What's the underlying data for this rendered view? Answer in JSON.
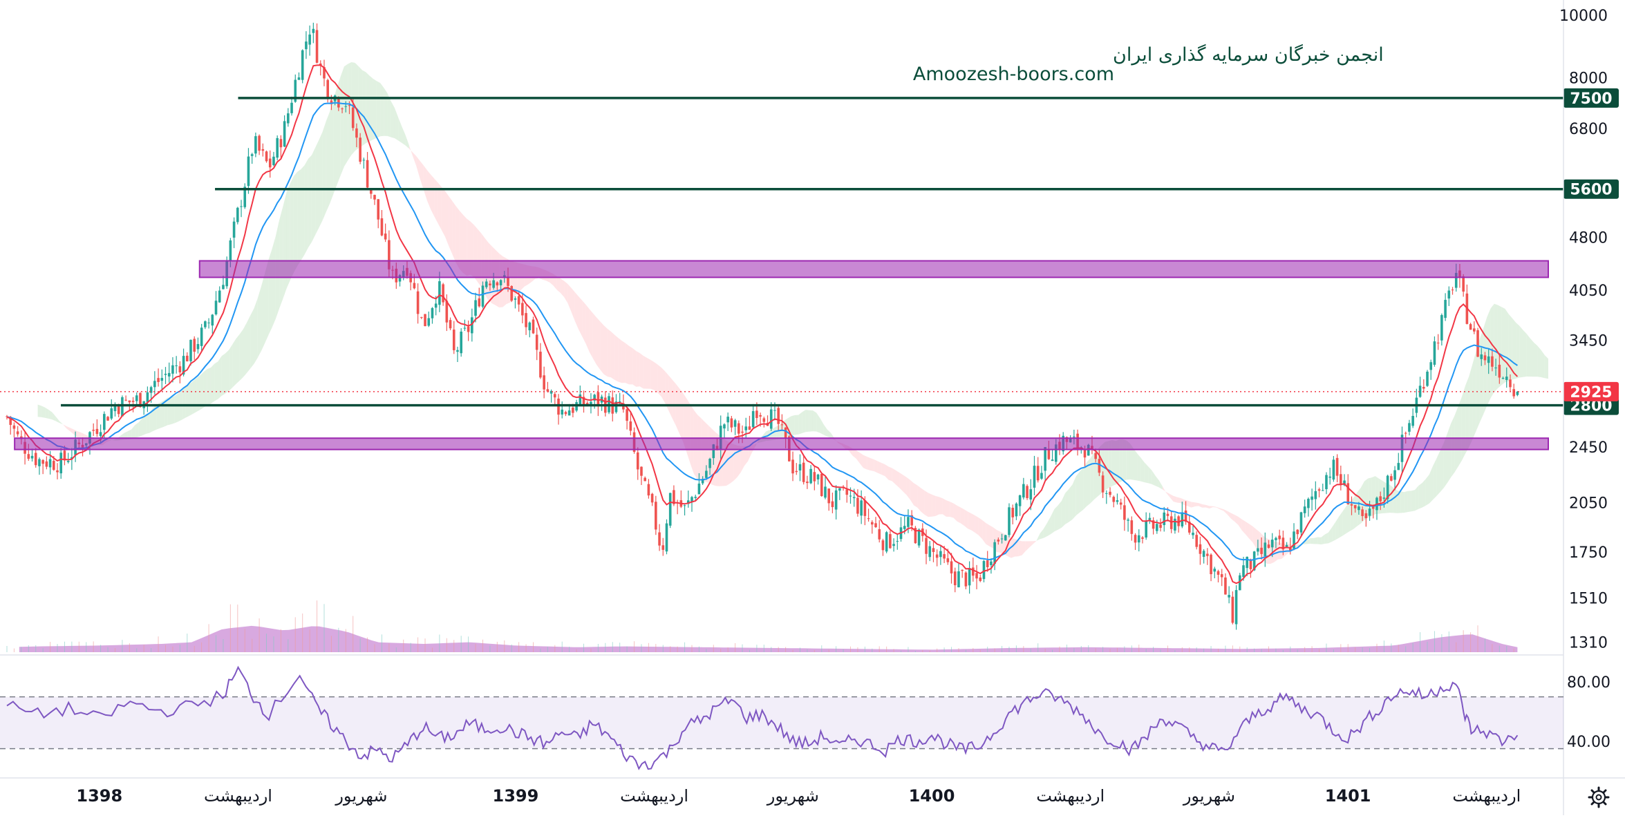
{
  "watermark": {
    "line1": "انجمن خبرگان سرمایه گذاری ایران",
    "line2": "Amoozesh-boors.com"
  },
  "colors": {
    "up_candle": "#26a69a",
    "down_candle": "#ef5350",
    "ema_fast": "#f23645",
    "ema_slow": "#2196f3",
    "cloud_bull": "#c8e6c9",
    "cloud_bear": "#ffcdd2",
    "level_line": "#0b4d3a",
    "zone": "#9c27b0",
    "volume": "#ce93d8",
    "rsi": "#7e57c2",
    "price_tag": "#f23645"
  },
  "toolbar": {
    "settings_icon": "gear-icon"
  },
  "chart_data": [
    {
      "type": "line",
      "subtype": "candlestick",
      "ylabel": "",
      "xlabel": "",
      "y_scale": "log",
      "ylim": [
        1280,
        10000
      ],
      "y_ticks": [
        "10000",
        "8000",
        "6800",
        "4800",
        "4050",
        "3450",
        "2450",
        "2050",
        "1750",
        "1510",
        "1310"
      ],
      "x_ticks": [
        {
          "label": "1398",
          "bold": true,
          "pos": 0.06
        },
        {
          "label": "اردیبهشت",
          "bold": false,
          "pos": 0.15
        },
        {
          "label": "شهریور",
          "bold": false,
          "pos": 0.23
        },
        {
          "label": "1399",
          "bold": true,
          "pos": 0.33
        },
        {
          "label": "اردیبهشت",
          "bold": false,
          "pos": 0.42
        },
        {
          "label": "شهریور",
          "bold": false,
          "pos": 0.51
        },
        {
          "label": "1400",
          "bold": true,
          "pos": 0.6
        },
        {
          "label": "اردیبهشت",
          "bold": false,
          "pos": 0.69
        },
        {
          "label": "شهریور",
          "bold": false,
          "pos": 0.78
        },
        {
          "label": "1401",
          "bold": true,
          "pos": 0.87
        },
        {
          "label": "اردیبهشت",
          "bold": false,
          "pos": 0.96
        }
      ],
      "price_path": [
        [
          0,
          2700
        ],
        [
          0.008,
          2500
        ],
        [
          0.02,
          2350
        ],
        [
          0.035,
          2330
        ],
        [
          0.05,
          2500
        ],
        [
          0.07,
          2800
        ],
        [
          0.085,
          2850
        ],
        [
          0.1,
          3050
        ],
        [
          0.115,
          3250
        ],
        [
          0.13,
          3600
        ],
        [
          0.14,
          4200
        ],
        [
          0.15,
          5200
        ],
        [
          0.16,
          6500
        ],
        [
          0.17,
          6000
        ],
        [
          0.18,
          6800
        ],
        [
          0.19,
          8400
        ],
        [
          0.197,
          9500
        ],
        [
          0.205,
          8000
        ],
        [
          0.21,
          7600
        ],
        [
          0.22,
          7400
        ],
        [
          0.23,
          6200
        ],
        [
          0.24,
          5200
        ],
        [
          0.25,
          4200
        ],
        [
          0.26,
          4400
        ],
        [
          0.27,
          3600
        ],
        [
          0.28,
          4100
        ],
        [
          0.29,
          3300
        ],
        [
          0.3,
          3600
        ],
        [
          0.31,
          4200
        ],
        [
          0.32,
          4250
        ],
        [
          0.33,
          3900
        ],
        [
          0.34,
          3500
        ],
        [
          0.35,
          2950
        ],
        [
          0.36,
          2750
        ],
        [
          0.37,
          2800
        ],
        [
          0.385,
          2850
        ],
        [
          0.4,
          2750
        ],
        [
          0.41,
          2250
        ],
        [
          0.42,
          1950
        ],
        [
          0.425,
          1750
        ],
        [
          0.43,
          2100
        ],
        [
          0.44,
          2000
        ],
        [
          0.455,
          2300
        ],
        [
          0.465,
          2650
        ],
        [
          0.48,
          2550
        ],
        [
          0.485,
          2800
        ],
        [
          0.5,
          2650
        ],
        [
          0.51,
          2300
        ],
        [
          0.525,
          2200
        ],
        [
          0.535,
          2050
        ],
        [
          0.545,
          2100
        ],
        [
          0.555,
          2000
        ],
        [
          0.57,
          1800
        ],
        [
          0.585,
          1900
        ],
        [
          0.6,
          1750
        ],
        [
          0.615,
          1620
        ],
        [
          0.63,
          1600
        ],
        [
          0.635,
          1700
        ],
        [
          0.65,
          1950
        ],
        [
          0.665,
          2200
        ],
        [
          0.675,
          2400
        ],
        [
          0.685,
          2500
        ],
        [
          0.7,
          2450
        ],
        [
          0.71,
          2200
        ],
        [
          0.72,
          2050
        ],
        [
          0.73,
          1850
        ],
        [
          0.745,
          1900
        ],
        [
          0.76,
          1950
        ],
        [
          0.77,
          1850
        ],
        [
          0.78,
          1700
        ],
        [
          0.79,
          1550
        ],
        [
          0.795,
          1420
        ],
        [
          0.8,
          1650
        ],
        [
          0.81,
          1700
        ],
        [
          0.82,
          1800
        ],
        [
          0.83,
          1750
        ],
        [
          0.84,
          1950
        ],
        [
          0.85,
          2150
        ],
        [
          0.86,
          2300
        ],
        [
          0.87,
          2100
        ],
        [
          0.88,
          1900
        ],
        [
          0.89,
          2050
        ],
        [
          0.9,
          2300
        ],
        [
          0.91,
          2650
        ],
        [
          0.92,
          3100
        ],
        [
          0.93,
          3600
        ],
        [
          0.94,
          4300
        ],
        [
          0.945,
          3900
        ],
        [
          0.955,
          3300
        ],
        [
          0.965,
          3200
        ],
        [
          0.975,
          3050
        ],
        [
          0.98,
          2925
        ]
      ],
      "horizontal_levels": [
        {
          "value": 7500,
          "label": "7500"
        },
        {
          "value": 5600,
          "label": "5600"
        },
        {
          "value": 2800,
          "label": "2800"
        }
      ],
      "zones": [
        {
          "from": 4220,
          "to": 4450,
          "start": 0.125
        },
        {
          "from": 2430,
          "to": 2520,
          "start": 0.005
        }
      ],
      "last_price": {
        "value": 2925,
        "label": "2925"
      },
      "volume_profile": [
        [
          0.0,
          0.06
        ],
        [
          0.02,
          0.07
        ],
        [
          0.06,
          0.08
        ],
        [
          0.1,
          0.1
        ],
        [
          0.12,
          0.12
        ],
        [
          0.14,
          0.28
        ],
        [
          0.16,
          0.32
        ],
        [
          0.18,
          0.26
        ],
        [
          0.2,
          0.32
        ],
        [
          0.22,
          0.25
        ],
        [
          0.24,
          0.12
        ],
        [
          0.27,
          0.1
        ],
        [
          0.3,
          0.12
        ],
        [
          0.33,
          0.08
        ],
        [
          0.37,
          0.06
        ],
        [
          0.4,
          0.07
        ],
        [
          0.45,
          0.06
        ],
        [
          0.5,
          0.05
        ],
        [
          0.55,
          0.04
        ],
        [
          0.6,
          0.03
        ],
        [
          0.65,
          0.05
        ],
        [
          0.7,
          0.06
        ],
        [
          0.75,
          0.05
        ],
        [
          0.8,
          0.04
        ],
        [
          0.85,
          0.05
        ],
        [
          0.9,
          0.08
        ],
        [
          0.93,
          0.18
        ],
        [
          0.95,
          0.22
        ],
        [
          0.97,
          0.1
        ],
        [
          0.98,
          0.06
        ]
      ]
    },
    {
      "type": "line",
      "subtype": "rsi",
      "ylim": [
        18,
        95
      ],
      "y_ticks": [
        "80.00",
        "40.00"
      ],
      "band": [
        35,
        70
      ],
      "series": [
        {
          "values": [
            [
              0,
              64
            ],
            [
              0.02,
              58
            ],
            [
              0.04,
              62
            ],
            [
              0.06,
              55
            ],
            [
              0.08,
              66
            ],
            [
              0.1,
              60
            ],
            [
              0.12,
              64
            ],
            [
              0.14,
              71
            ],
            [
              0.15,
              88
            ],
            [
              0.16,
              70
            ],
            [
              0.17,
              58
            ],
            [
              0.19,
              86
            ],
            [
              0.2,
              64
            ],
            [
              0.21,
              52
            ],
            [
              0.22,
              40
            ],
            [
              0.23,
              30
            ],
            [
              0.24,
              34
            ],
            [
              0.25,
              28
            ],
            [
              0.26,
              38
            ],
            [
              0.27,
              50
            ],
            [
              0.28,
              42
            ],
            [
              0.29,
              44
            ],
            [
              0.3,
              52
            ],
            [
              0.31,
              48
            ],
            [
              0.32,
              50
            ],
            [
              0.33,
              46
            ],
            [
              0.34,
              42
            ],
            [
              0.35,
              38
            ],
            [
              0.36,
              46
            ],
            [
              0.37,
              42
            ],
            [
              0.38,
              52
            ],
            [
              0.39,
              44
            ],
            [
              0.4,
              32
            ],
            [
              0.41,
              24
            ],
            [
              0.42,
              26
            ],
            [
              0.43,
              34
            ],
            [
              0.44,
              50
            ],
            [
              0.45,
              54
            ],
            [
              0.46,
              62
            ],
            [
              0.47,
              68
            ],
            [
              0.48,
              56
            ],
            [
              0.49,
              58
            ],
            [
              0.5,
              50
            ],
            [
              0.51,
              40
            ],
            [
              0.52,
              38
            ],
            [
              0.53,
              44
            ],
            [
              0.54,
              36
            ],
            [
              0.55,
              42
            ],
            [
              0.56,
              38
            ],
            [
              0.57,
              34
            ],
            [
              0.58,
              42
            ],
            [
              0.59,
              40
            ],
            [
              0.6,
              44
            ],
            [
              0.61,
              38
            ],
            [
              0.62,
              34
            ],
            [
              0.63,
              36
            ],
            [
              0.64,
              46
            ],
            [
              0.65,
              58
            ],
            [
              0.66,
              66
            ],
            [
              0.67,
              72
            ],
            [
              0.68,
              70
            ],
            [
              0.69,
              64
            ],
            [
              0.7,
              56
            ],
            [
              0.71,
              44
            ],
            [
              0.72,
              40
            ],
            [
              0.73,
              34
            ],
            [
              0.74,
              44
            ],
            [
              0.75,
              56
            ],
            [
              0.76,
              50
            ],
            [
              0.77,
              42
            ],
            [
              0.78,
              36
            ],
            [
              0.79,
              32
            ],
            [
              0.8,
              48
            ],
            [
              0.81,
              58
            ],
            [
              0.82,
              64
            ],
            [
              0.83,
              70
            ],
            [
              0.84,
              62
            ],
            [
              0.85,
              58
            ],
            [
              0.86,
              48
            ],
            [
              0.87,
              42
            ],
            [
              0.88,
              52
            ],
            [
              0.89,
              62
            ],
            [
              0.9,
              72
            ],
            [
              0.91,
              74
            ],
            [
              0.92,
              70
            ],
            [
              0.93,
              76
            ],
            [
              0.94,
              80
            ],
            [
              0.945,
              60
            ],
            [
              0.95,
              48
            ],
            [
              0.96,
              46
            ],
            [
              0.97,
              40
            ],
            [
              0.98,
              44
            ]
          ]
        }
      ]
    }
  ]
}
